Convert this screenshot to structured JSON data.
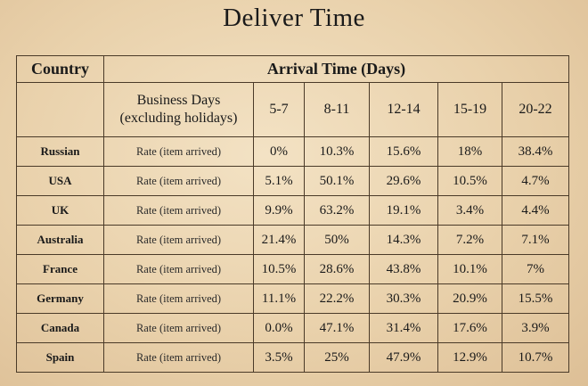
{
  "title": "Deliver Time",
  "header": {
    "country": "Country",
    "arrival": "Arrival Time (Days)",
    "business_days_line1": "Business Days",
    "business_days_line2": "(excluding holidays)",
    "ranges": [
      "5-7",
      "8-11",
      "12-14",
      "15-19",
      "20-22"
    ]
  },
  "rows": [
    {
      "country": "Russian",
      "label": "Rate (item arrived)",
      "values": [
        "0%",
        "10.3%",
        "15.6%",
        "18%",
        "38.4%"
      ]
    },
    {
      "country": "USA",
      "label": "Rate (item arrived)",
      "values": [
        "5.1%",
        "50.1%",
        "29.6%",
        "10.5%",
        "4.7%"
      ]
    },
    {
      "country": "UK",
      "label": "Rate (item arrived)",
      "values": [
        "9.9%",
        "63.2%",
        "19.1%",
        "3.4%",
        "4.4%"
      ]
    },
    {
      "country": "Australia",
      "label": "Rate (item arrived)",
      "values": [
        "21.4%",
        "50%",
        "14.3%",
        "7.2%",
        "7.1%"
      ]
    },
    {
      "country": "France",
      "label": "Rate (item arrived)",
      "values": [
        "10.5%",
        "28.6%",
        "43.8%",
        "10.1%",
        "7%"
      ]
    },
    {
      "country": "Germany",
      "label": "Rate (item arrived)",
      "values": [
        "11.1%",
        "22.2%",
        "30.3%",
        "20.9%",
        "15.5%"
      ]
    },
    {
      "country": "Canada",
      "label": "Rate (item arrived)",
      "values": [
        "0.0%",
        "47.1%",
        "31.4%",
        "17.6%",
        "3.9%"
      ]
    },
    {
      "country": "Spain",
      "label": "Rate (item arrived)",
      "values": [
        "3.5%",
        "25%",
        "47.9%",
        "12.9%",
        "10.7%"
      ]
    }
  ]
}
